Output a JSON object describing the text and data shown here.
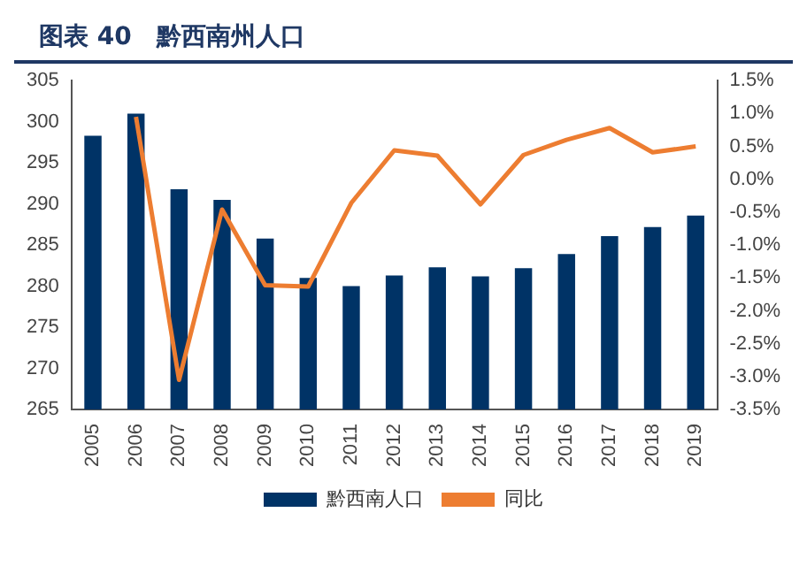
{
  "chart_data": {
    "type": "bar",
    "title": "图表 40　黔西南州人口",
    "categories": [
      "2005",
      "2006",
      "2007",
      "2008",
      "2009",
      "2010",
      "2011",
      "2012",
      "2013",
      "2014",
      "2015",
      "2016",
      "2017",
      "2018",
      "2019"
    ],
    "series": [
      {
        "name": "黔西南人口",
        "color": "#003366",
        "values": [
          298.3,
          301,
          291.8,
          290.5,
          285.8,
          281,
          280,
          281.3,
          282.3,
          281.2,
          282.2,
          283.9,
          286.1,
          287.2,
          288.6
        ]
      },
      {
        "name": "同比",
        "type": "line",
        "axis": "y2",
        "color": "#ed7d31",
        "values": [
          null,
          0.95,
          -3.05,
          -0.46,
          -1.61,
          -1.63,
          -0.36,
          0.44,
          0.36,
          -0.38,
          0.37,
          0.6,
          0.78,
          0.41,
          0.5
        ]
      }
    ],
    "ylim": [
      265,
      305
    ],
    "yticks": [
      265,
      270,
      275,
      280,
      285,
      290,
      295,
      300,
      305
    ],
    "y2lim": [
      -3.5,
      1.5
    ],
    "y2ticks": [
      {
        "value": -3.5,
        "label": "-3.5%"
      },
      {
        "value": -3,
        "label": "-3.0%"
      },
      {
        "value": -2.5,
        "label": "-2.5%"
      },
      {
        "value": -2,
        "label": "-2.0%"
      },
      {
        "value": -1.5,
        "label": "-1.5%"
      },
      {
        "value": -1,
        "label": "-1.0%"
      },
      {
        "value": -0.5,
        "label": "-0.5%"
      },
      {
        "value": 0,
        "label": "0.0%"
      },
      {
        "value": 0.5,
        "label": "0.5%"
      },
      {
        "value": 1,
        "label": "1.0%"
      },
      {
        "value": 1.5,
        "label": "1.5%"
      }
    ],
    "grid": false,
    "legend": "bottom",
    "marker": "none"
  }
}
